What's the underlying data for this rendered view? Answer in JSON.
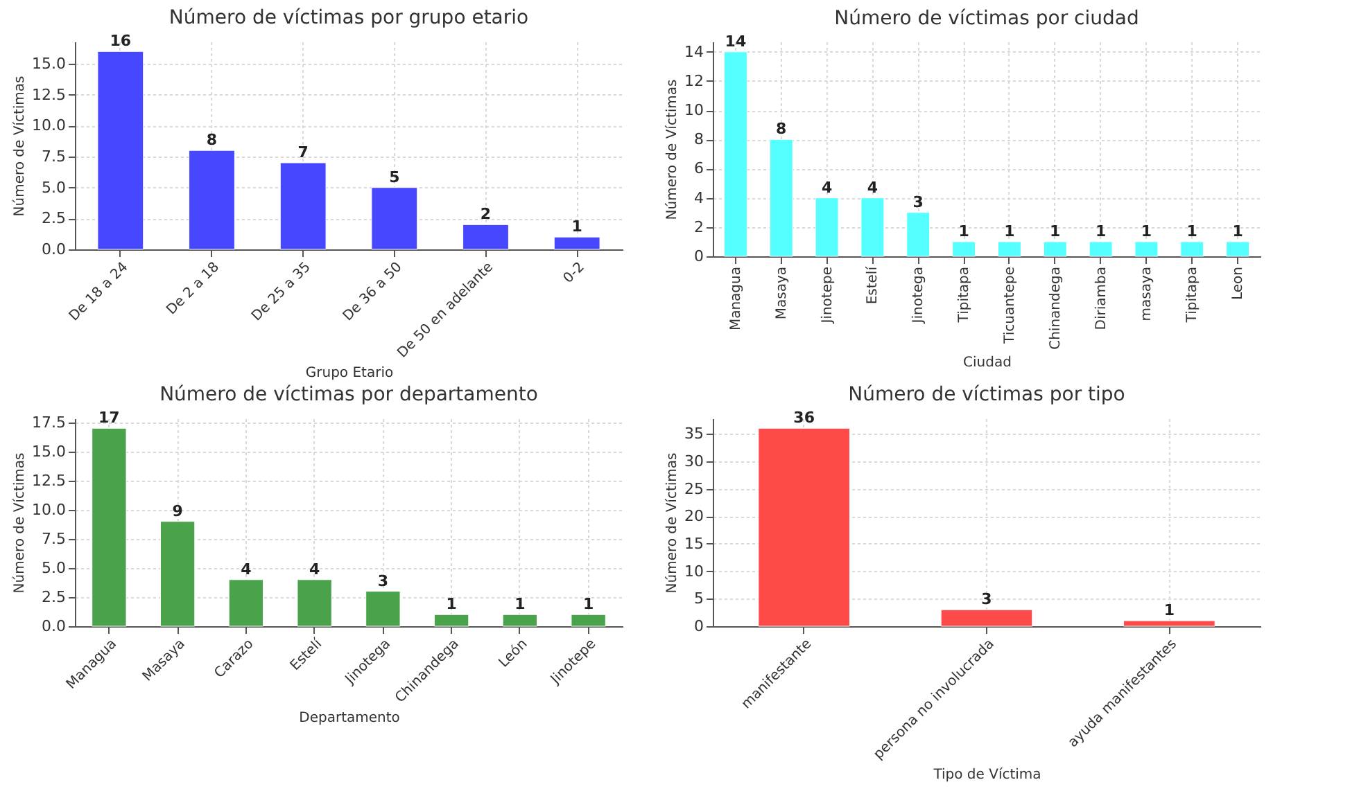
{
  "chart_data": [
    {
      "type": "bar",
      "title": "Número de víctimas por grupo etario",
      "xlabel": "Grupo Etario",
      "ylabel": "Número de Víctimas",
      "categories": [
        "De 18 a 24",
        "De 2 a 18",
        "De 25 a 35",
        "De 36 a 50",
        "De 50 en adelante",
        "0-2"
      ],
      "values": [
        16,
        8,
        7,
        5,
        2,
        1
      ],
      "color": "#4747ff",
      "ylim": [
        0,
        16.8
      ],
      "yticks": [
        {
          "value": 0,
          "label": "0.0"
        },
        {
          "value": 2.5,
          "label": "2.5"
        },
        {
          "value": 5,
          "label": "5.0"
        },
        {
          "value": 7.5,
          "label": "7.5"
        },
        {
          "value": 10,
          "label": "10.0"
        },
        {
          "value": 12.5,
          "label": "12.5"
        },
        {
          "value": 15,
          "label": "15.0"
        }
      ],
      "grid": true,
      "data_labels": true
    },
    {
      "type": "bar",
      "title": "Número de víctimas por ciudad",
      "xlabel": "Ciudad",
      "ylabel": "Número de Víctimas",
      "categories": [
        "Managua",
        "Masaya",
        "Jinotepe",
        "Estelí",
        "Jinotega",
        "Tipitapa",
        "Ticuantepe",
        "Chinandega",
        "Diriamba",
        "masaya",
        "Tipitapa",
        "Leon"
      ],
      "values": [
        14,
        8,
        4,
        4,
        3,
        1,
        1,
        1,
        1,
        1,
        1,
        1
      ],
      "color": "#55ffff",
      "ylim": [
        0,
        14.7
      ],
      "yticks": [
        0,
        2,
        4,
        6,
        8,
        10,
        12,
        14
      ],
      "grid": true,
      "data_labels": true
    },
    {
      "type": "bar",
      "title": "Número de víctimas por departamento",
      "xlabel": "Departamento",
      "ylabel": "Número de Víctimas",
      "categories": [
        "Managua",
        "Masaya",
        "Carazo",
        "Estelí",
        "Jinotega",
        "Chinandega",
        "León",
        "Jinotepe"
      ],
      "values": [
        17,
        9,
        4,
        4,
        3,
        1,
        1,
        1
      ],
      "color": "#4aa34a",
      "ylim": [
        0,
        17.85
      ],
      "yticks": [
        {
          "value": 0,
          "label": "0.0"
        },
        {
          "value": 2.5,
          "label": "2.5"
        },
        {
          "value": 5,
          "label": "5.0"
        },
        {
          "value": 7.5,
          "label": "7.5"
        },
        {
          "value": 10,
          "label": "10.0"
        },
        {
          "value": 12.5,
          "label": "12.5"
        },
        {
          "value": 15,
          "label": "15.0"
        },
        {
          "value": 17.5,
          "label": "17.5"
        }
      ],
      "grid": true,
      "data_labels": true
    },
    {
      "type": "bar",
      "title": "Número de víctimas por tipo",
      "xlabel": "Tipo de Víctima",
      "ylabel": "Número de Víctimas",
      "categories": [
        "manifestante",
        "persona no involucrada",
        "ayuda manifestantes"
      ],
      "values": [
        36,
        3,
        1
      ],
      "color": "#ff4a4a",
      "ylim": [
        0,
        37.8
      ],
      "yticks": [
        0,
        5,
        10,
        15,
        20,
        25,
        30,
        35
      ],
      "grid": true,
      "data_labels": true
    }
  ]
}
